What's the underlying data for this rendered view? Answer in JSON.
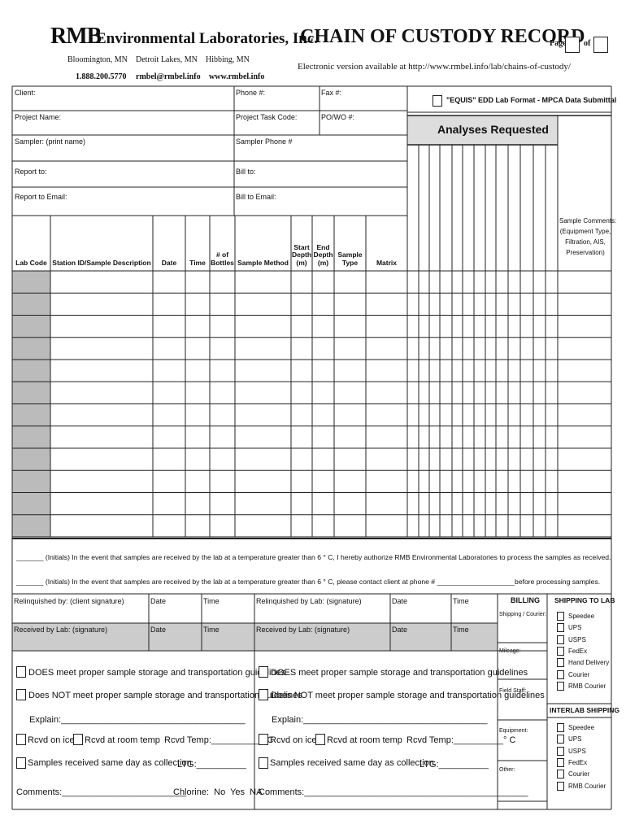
{
  "header": {
    "logo": "RMB",
    "company": "Environmental Laboratories, Inc.",
    "locations": [
      "Bloomington, MN",
      "Detroit Lakes, MN",
      "Hibbing, MN"
    ],
    "contacts": [
      "1.888.200.5770",
      "rmbel@rmbel.info",
      "www.rmbel.info"
    ],
    "title": "CHAIN OF CUSTODY RECORD",
    "page_label": "Page",
    "of_label": "of",
    "electronic_note": "Electronic version available at http://www.rmbel.info/lab/chains-of-custody/"
  },
  "fields": [
    "Client:",
    "Phone #:",
    "Fax #:",
    "Project Name:",
    "Project Task Code:",
    "PO/WO #:",
    "Sampler: (print name)",
    "Sampler Phone #",
    "Report to:",
    "Bill to:",
    "Report to Email:",
    "Bill to Email:"
  ],
  "edd_option": "\"EQUIS\" EDD Lab Format - MPCA Data Submittal",
  "analyses_title": "Analyses Requested",
  "sample_comments": [
    "Sample Comments:",
    "(Equipment Type,",
    "Filtration, AIS,",
    "Preservation)"
  ],
  "columns": [
    "Lab Code",
    "Station ID/Sample Description",
    "Date",
    "Time",
    "# of Bottles",
    "Sample Method",
    "Start Depth (m)",
    "End Depth (m)",
    "Sample Type",
    "Matrix"
  ],
  "notes": [
    "_______ (Initials) In the event that samples are received by the lab at a temperature greater than 6 ° C, I hereby authorize RMB Environmental Laboratories to process the samples as received.",
    "_______ (Initials) In the event that samples are received by the lab at a temperature greater than 6 ° C, please contact client at phone # ____________________before processing samples."
  ],
  "signatures": [
    [
      "Relinquished by: (client signature)",
      "Date",
      "Time",
      "Relinquished by Lab: (signature)",
      "Date",
      "Time"
    ],
    [
      "Received by Lab: (signature)",
      "Date",
      "Time",
      "Received by Lab: (signature)",
      "Date",
      "Time"
    ]
  ],
  "billing": {
    "title": "BILLING",
    "fields": [
      "Shipping / Courier:",
      "Mileage:",
      "Field Staff:",
      "Equipment:",
      "Other:"
    ]
  },
  "shipping_to_lab": {
    "title": "SHIPPING TO LAB",
    "options": [
      "Speedee",
      "UPS",
      "USPS",
      "FedEx",
      "Hand Delivery",
      "Courier",
      "RMB Courier"
    ]
  },
  "interlab_shipping": {
    "title": "INTERLAB SHIPPING",
    "options": [
      "Speedee",
      "UPS",
      "USPS",
      "FedEx",
      "Courier",
      "RMB Courier"
    ]
  },
  "receiving": [
    {
      "meets": "DOES meet proper sample storage and transportation guidelines",
      "not_meets": "Does NOT meet proper sample storage and transportation guidelines",
      "explain": "Explain:_____________________________________",
      "on_ice": "Rcvd on ice",
      "room_temp": "Rcvd at room temp",
      "temp": "Rcvd Temp:__________° C",
      "same_day": "Samples received same day as collection",
      "ltg": "LTG:__________",
      "comments": "Comments:_________________________",
      "chlorine": "Chlorine:  No  Yes  NA"
    },
    {
      "meets": "DOES meet proper sample storage and transportation guidelines",
      "not_meets": "Does NOT meet proper sample storage and transportation guidelines",
      "explain": "Explain:_____________________________________",
      "on_ice": "Rcvd on ice",
      "room_temp": "Rcvd at room temp",
      "temp": "Rcvd Temp:__________° C",
      "same_day": "Samples received same day as collection",
      "ltg": "LTG:__________",
      "comments": "Comments:_____________________________________________"
    }
  ]
}
